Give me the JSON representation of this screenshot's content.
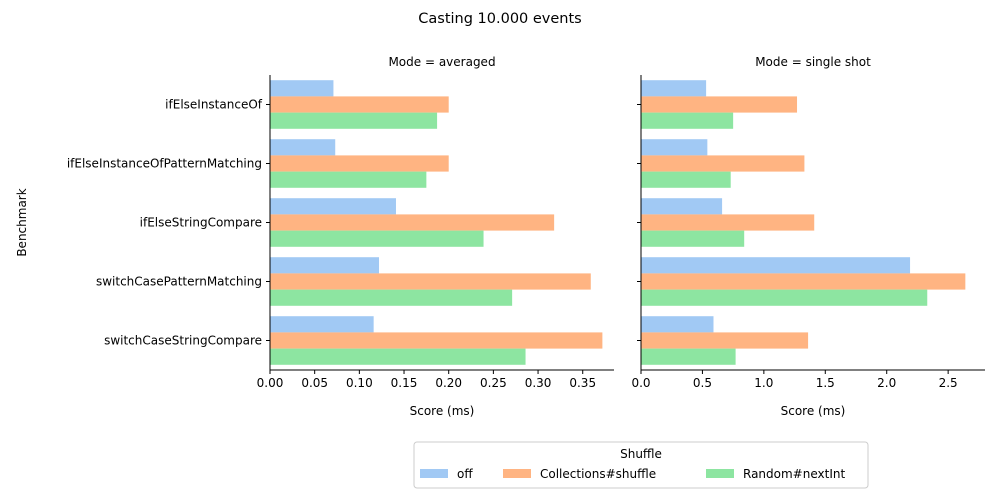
{
  "title": "Casting 10.000 events",
  "legend": {
    "title": "Shuffle",
    "placement": "bottom-center",
    "entries": [
      "off",
      "Collections#shuffle",
      "Random#nextInt"
    ]
  },
  "colors": {
    "off": "#a1c9f4",
    "Collections#shuffle": "#ffb482",
    "Random#nextInt": "#8de5a1"
  },
  "chart_data": [
    {
      "type": "bar",
      "orientation": "horizontal",
      "facet_title": "Mode = averaged",
      "xlabel": "Score (ms)",
      "ylabel": "Benchmark",
      "xlim": [
        0,
        0.385
      ],
      "xticks": [
        "0.00",
        "0.05",
        "0.10",
        "0.15",
        "0.20",
        "0.25",
        "0.30",
        "0.35"
      ],
      "xtick_values": [
        0,
        0.05,
        0.1,
        0.15,
        0.2,
        0.25,
        0.3,
        0.35
      ],
      "categories": [
        "ifElseInstanceOf",
        "ifElseInstanceOfPatternMatching",
        "ifElseStringCompare",
        "switchCasePatternMatching",
        "switchCaseStringCompare"
      ],
      "series": [
        {
          "name": "off",
          "values": [
            0.071,
            0.073,
            0.141,
            0.122,
            0.116
          ]
        },
        {
          "name": "Collections#shuffle",
          "values": [
            0.2,
            0.2,
            0.318,
            0.359,
            0.372
          ]
        },
        {
          "name": "Random#nextInt",
          "values": [
            0.187,
            0.175,
            0.239,
            0.271,
            0.286
          ]
        }
      ]
    },
    {
      "type": "bar",
      "orientation": "horizontal",
      "facet_title": "Mode = single shot",
      "xlabel": "Score (ms)",
      "ylabel": "",
      "xlim": [
        0,
        2.8
      ],
      "xticks": [
        "0.0",
        "0.5",
        "1.0",
        "1.5",
        "2.0",
        "2.5"
      ],
      "xtick_values": [
        0,
        0.5,
        1.0,
        1.5,
        2.0,
        2.5
      ],
      "categories": [
        "ifElseInstanceOf",
        "ifElseInstanceOfPatternMatching",
        "ifElseStringCompare",
        "switchCasePatternMatching",
        "switchCaseStringCompare"
      ],
      "series": [
        {
          "name": "off",
          "values": [
            0.53,
            0.54,
            0.66,
            2.19,
            0.59
          ]
        },
        {
          "name": "Collections#shuffle",
          "values": [
            1.27,
            1.33,
            1.41,
            2.64,
            1.36
          ]
        },
        {
          "name": "Random#nextInt",
          "values": [
            0.75,
            0.73,
            0.84,
            2.33,
            0.77
          ]
        }
      ]
    }
  ]
}
